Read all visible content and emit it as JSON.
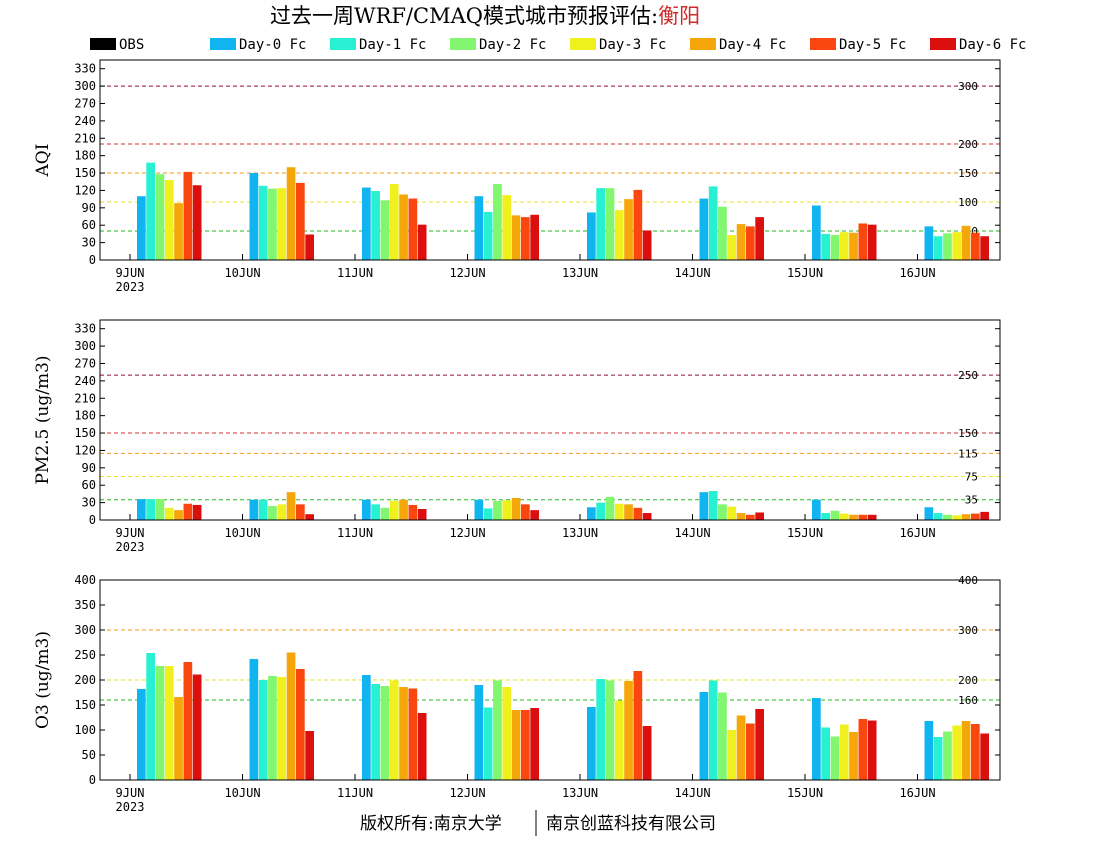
{
  "title": "过去一周WRF/CMAQ模式城市预报评估:",
  "city": "衡阳",
  "footer": {
    "left": "版权所有:南京大学",
    "right": "南京创蓝科技有限公司"
  },
  "chart_data": {
    "type": "bar",
    "categories": [
      "9JUN",
      "10JUN",
      "11JUN",
      "12JUN",
      "13JUN",
      "14JUN",
      "15JUN",
      "16JUN"
    ],
    "first_category_sublabel": "2023",
    "legend": [
      {
        "name": "OBS",
        "color": "#000000"
      },
      {
        "name": "Day-0 Fc",
        "color": "#10b4f0"
      },
      {
        "name": "Day-1 Fc",
        "color": "#28f0d2"
      },
      {
        "name": "Day-2 Fc",
        "color": "#82f66e"
      },
      {
        "name": "Day-3 Fc",
        "color": "#f0f01e"
      },
      {
        "name": "Day-4 Fc",
        "color": "#f5a60a"
      },
      {
        "name": "Day-5 Fc",
        "color": "#fa460f"
      },
      {
        "name": "Day-6 Fc",
        "color": "#dc0f0f"
      }
    ],
    "panels": [
      {
        "ylabel": "AQI",
        "ylim": [
          0,
          345
        ],
        "yticks": [
          0,
          30,
          60,
          90,
          120,
          150,
          180,
          210,
          240,
          270,
          300,
          330
        ],
        "ref_lines": [
          {
            "value": 50,
            "label": "50",
            "color": "#22bb22"
          },
          {
            "value": 100,
            "label": "100",
            "color": "#e6e62a"
          },
          {
            "value": 150,
            "label": "150",
            "color": "#f39a1a"
          },
          {
            "value": 200,
            "label": "200",
            "color": "#d23232"
          },
          {
            "value": 300,
            "label": "300",
            "color": "#960a3c"
          }
        ],
        "series": [
          {
            "name": "Day-0 Fc",
            "values": [
              110,
              150,
              125,
              110,
              82,
              106,
              94,
              58
            ]
          },
          {
            "name": "Day-1 Fc",
            "values": [
              168,
              128,
              119,
              83,
              124,
              127,
              45,
              41
            ]
          },
          {
            "name": "Day-2 Fc",
            "values": [
              148,
              123,
              103,
              131,
              124,
              92,
              43,
              46
            ]
          },
          {
            "name": "Day-3 Fc",
            "values": [
              138,
              124,
              131,
              112,
              86,
              43,
              48,
              48
            ]
          },
          {
            "name": "Day-4 Fc",
            "values": [
              98,
              160,
              113,
              77,
              105,
              62,
              47,
              59
            ]
          },
          {
            "name": "Day-5 Fc",
            "values": [
              152,
              133,
              106,
              74,
              121,
              58,
              63,
              47
            ]
          },
          {
            "name": "Day-6 Fc",
            "values": [
              129,
              44,
              61,
              78,
              51,
              74,
              61,
              41
            ]
          }
        ]
      },
      {
        "ylabel": "PM2.5 (ug/m3)",
        "ylim": [
          0,
          345
        ],
        "yticks": [
          0,
          30,
          60,
          90,
          120,
          150,
          180,
          210,
          240,
          270,
          300,
          330
        ],
        "ref_lines": [
          {
            "value": 35,
            "label": "35",
            "color": "#22bb22"
          },
          {
            "value": 75,
            "label": "75",
            "color": "#e6e62a"
          },
          {
            "value": 115,
            "label": "115",
            "color": "#f39a1a"
          },
          {
            "value": 150,
            "label": "150",
            "color": "#d23232"
          },
          {
            "value": 250,
            "label": "250",
            "color": "#960a3c"
          }
        ],
        "series": [
          {
            "name": "Day-0 Fc",
            "values": [
              36,
              35,
              35,
              35,
              22,
              48,
              35,
              22
            ]
          },
          {
            "name": "Day-1 Fc",
            "values": [
              36,
              35,
              27,
              20,
              30,
              50,
              12,
              12
            ]
          },
          {
            "name": "Day-2 Fc",
            "values": [
              36,
              24,
              21,
              33,
              40,
              27,
              16,
              9
            ]
          },
          {
            "name": "Day-3 Fc",
            "values": [
              21,
              27,
              33,
              34,
              28,
              23,
              11,
              8
            ]
          },
          {
            "name": "Day-4 Fc",
            "values": [
              17,
              48,
              35,
              38,
              27,
              12,
              9,
              10
            ]
          },
          {
            "name": "Day-5 Fc",
            "values": [
              28,
              27,
              26,
              27,
              21,
              9,
              9,
              11
            ]
          },
          {
            "name": "Day-6 Fc",
            "values": [
              26,
              10,
              19,
              17,
              12,
              13,
              9,
              14
            ]
          }
        ]
      },
      {
        "ylabel": "O3 (ug/m3)",
        "ylim": [
          0,
          400
        ],
        "yticks": [
          0,
          50,
          100,
          150,
          200,
          250,
          300,
          350,
          400
        ],
        "ref_lines": [
          {
            "value": 160,
            "label": "160",
            "color": "#22bb22"
          },
          {
            "value": 200,
            "label": "200",
            "color": "#e6e62a"
          },
          {
            "value": 300,
            "label": "300",
            "color": "#f39a1a"
          },
          {
            "value": 400,
            "label": "400",
            "color": "#d23232"
          }
        ],
        "series": [
          {
            "name": "Day-0 Fc",
            "values": [
              182,
              242,
              210,
              190,
              146,
              176,
              164,
              118
            ]
          },
          {
            "name": "Day-1 Fc",
            "values": [
              254,
              200,
              192,
              145,
              202,
              199,
              105,
              86
            ]
          },
          {
            "name": "Day-2 Fc",
            "values": [
              228,
              208,
              188,
              199,
              199,
              175,
              87,
              97
            ]
          },
          {
            "name": "Day-3 Fc",
            "values": [
              228,
              206,
              199,
              186,
              159,
              100,
              111,
              109
            ]
          },
          {
            "name": "Day-4 Fc",
            "values": [
              166,
              255,
              186,
              140,
              198,
              129,
              96,
              118
            ]
          },
          {
            "name": "Day-5 Fc",
            "values": [
              236,
              222,
              183,
              140,
              218,
              113,
              122,
              112
            ]
          },
          {
            "name": "Day-6 Fc",
            "values": [
              211,
              98,
              134,
              144,
              108,
              142,
              119,
              93
            ]
          }
        ]
      }
    ]
  }
}
